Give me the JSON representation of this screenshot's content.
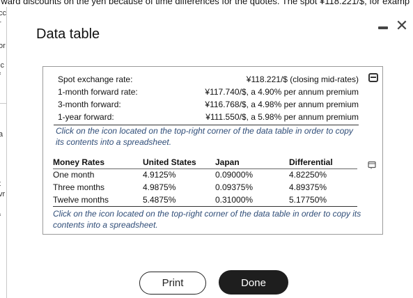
{
  "background": {
    "top_text": "rward discounts on the yen because of time differences for the quotes. The spot ¥118.221/$, for examp",
    "left_fragments": [
      "cc",
      "r",
      "or",
      "ic",
      "f",
      "a",
      "t",
      "vr",
      "f"
    ]
  },
  "dialog": {
    "title": "Data table",
    "minimize_label": "–",
    "close_label": "✕"
  },
  "rates": [
    {
      "label": "Spot exchange rate:",
      "value": "¥118.221/$ (closing mid-rates)"
    },
    {
      "label": "1-month forward rate:",
      "value": "¥117.740/$, a 4.90% per annum premium"
    },
    {
      "label": "3-month forward:",
      "value": "¥116.768/$, a 4.98% per annum premium"
    },
    {
      "label": "1-year forward:",
      "value": "¥111.550/$, a 5.98% per annum premium"
    }
  ],
  "note_1": "Click on the icon located on the top-right corner of the data table in order to copy its contents into a spreadsheet.",
  "money_table": {
    "headers": [
      "Money Rates",
      "United States",
      "Japan",
      "Differential"
    ],
    "rows": [
      [
        "One month",
        "4.9125%",
        "0.09000%",
        "4.82250%"
      ],
      [
        "Three months",
        "4.9875%",
        "0.09375%",
        "4.89375%"
      ],
      [
        "Twelve months",
        "5.4875%",
        "0.31000%",
        "5.17750%"
      ]
    ]
  },
  "note_2": "Click on the icon located on the top-right corner of the data table in order to copy its contents into a spreadsheet.",
  "buttons": {
    "print": "Print",
    "done": "Done"
  }
}
